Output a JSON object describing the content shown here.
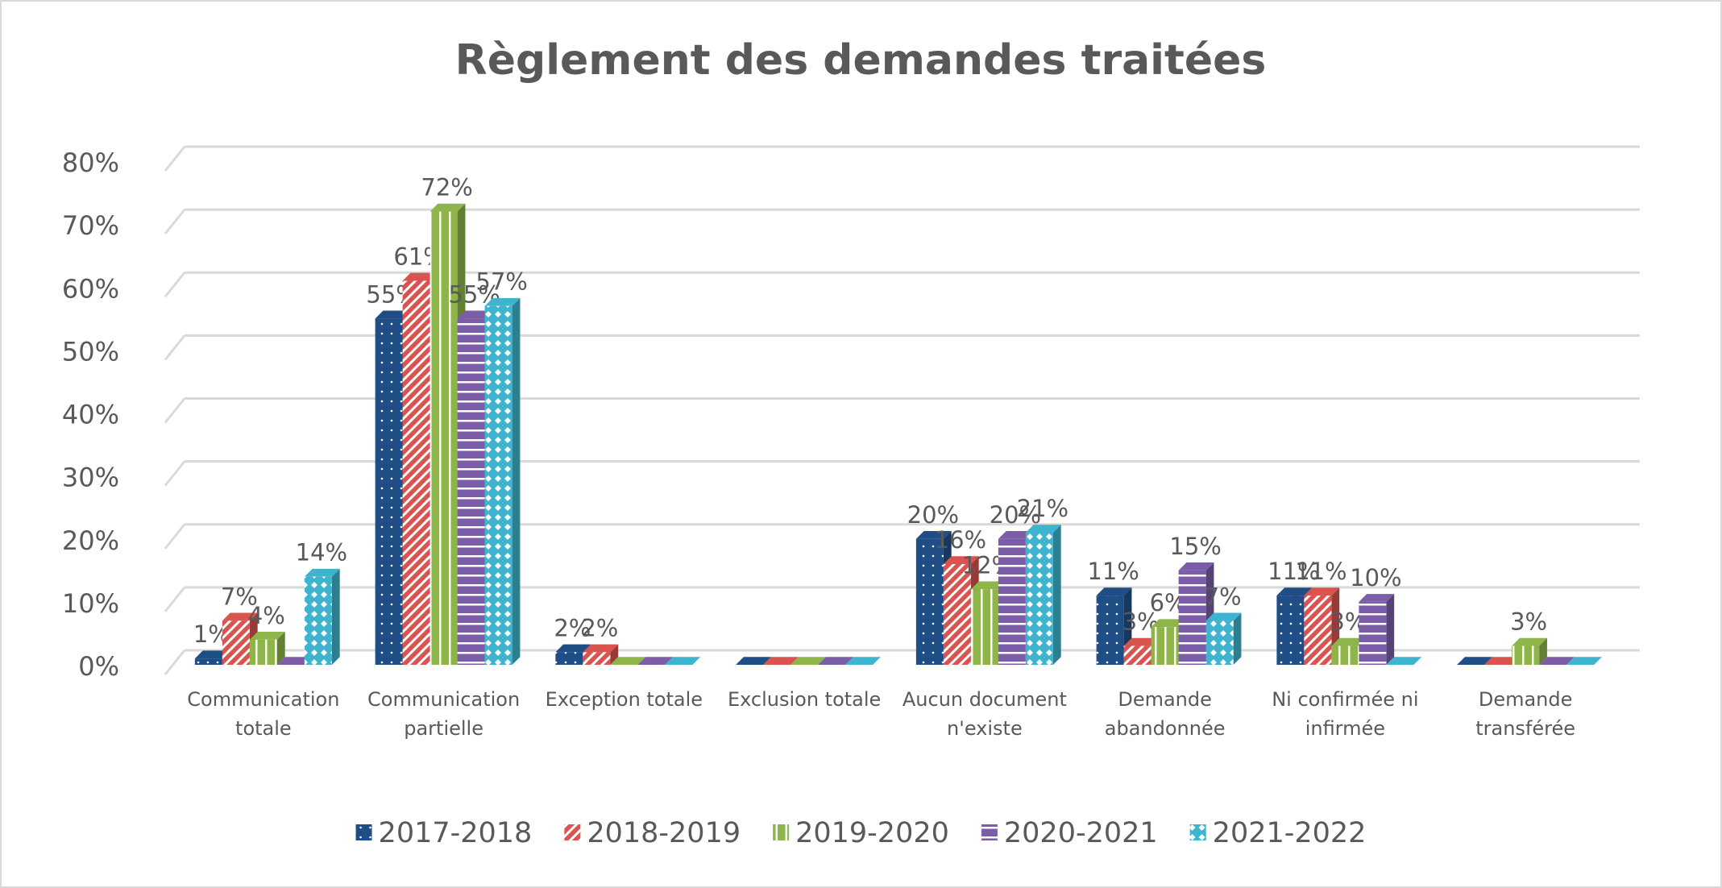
{
  "chart_data": {
    "type": "bar3d",
    "title": "Règlement des demandes traitées",
    "categories": [
      "Communication totale",
      "Communication partielle",
      "Exception totale",
      "Exclusion totale",
      "Aucun document n'existe",
      "Demande abandonnée",
      "Ni confirmée ni infirmée",
      "Demande transférée"
    ],
    "series": [
      {
        "name": "2017-2018",
        "color": "#1f4e86",
        "values": [
          1,
          55,
          2,
          0,
          20,
          11,
          11,
          0
        ],
        "value_labels": [
          "1%",
          "55%",
          "2%",
          null,
          "20%",
          "11%",
          "11%",
          null
        ]
      },
      {
        "name": "2018-2019",
        "color": "#d9534f",
        "values": [
          7,
          61,
          2,
          0,
          16,
          3,
          11,
          0
        ],
        "value_labels": [
          "7%",
          "61%",
          "2%",
          null,
          "16%",
          "3%",
          "11%",
          null
        ]
      },
      {
        "name": "2019-2020",
        "color": "#8db54a",
        "values": [
          4,
          72,
          0,
          0,
          12,
          6,
          3,
          3
        ],
        "value_labels": [
          "4%",
          "72%",
          null,
          null,
          "12%",
          "6%",
          "3%",
          "3%"
        ]
      },
      {
        "name": "2020-2021",
        "color": "#7b5ea7",
        "values": [
          0,
          55,
          0,
          0,
          20,
          15,
          10,
          0
        ],
        "value_labels": [
          null,
          "55%",
          null,
          null,
          "20%",
          "15%",
          "10%",
          null
        ]
      },
      {
        "name": "2021-2022",
        "color": "#3fb4cf",
        "values": [
          14,
          57,
          0,
          0,
          21,
          7,
          0,
          0
        ],
        "value_labels": [
          "14%",
          "57%",
          null,
          null,
          "21%",
          "7%",
          null,
          null
        ]
      }
    ],
    "ylim": [
      0,
      80
    ],
    "yticks": [
      {
        "value": 0,
        "label": "0%"
      },
      {
        "value": 10,
        "label": "10%"
      },
      {
        "value": 20,
        "label": "20%"
      },
      {
        "value": 30,
        "label": "30%"
      },
      {
        "value": 40,
        "label": "40%"
      },
      {
        "value": 50,
        "label": "50%"
      },
      {
        "value": 60,
        "label": "60%"
      },
      {
        "value": 70,
        "label": "70%"
      },
      {
        "value": 80,
        "label": "80%"
      }
    ],
    "grid": true,
    "legend": "bottom"
  }
}
